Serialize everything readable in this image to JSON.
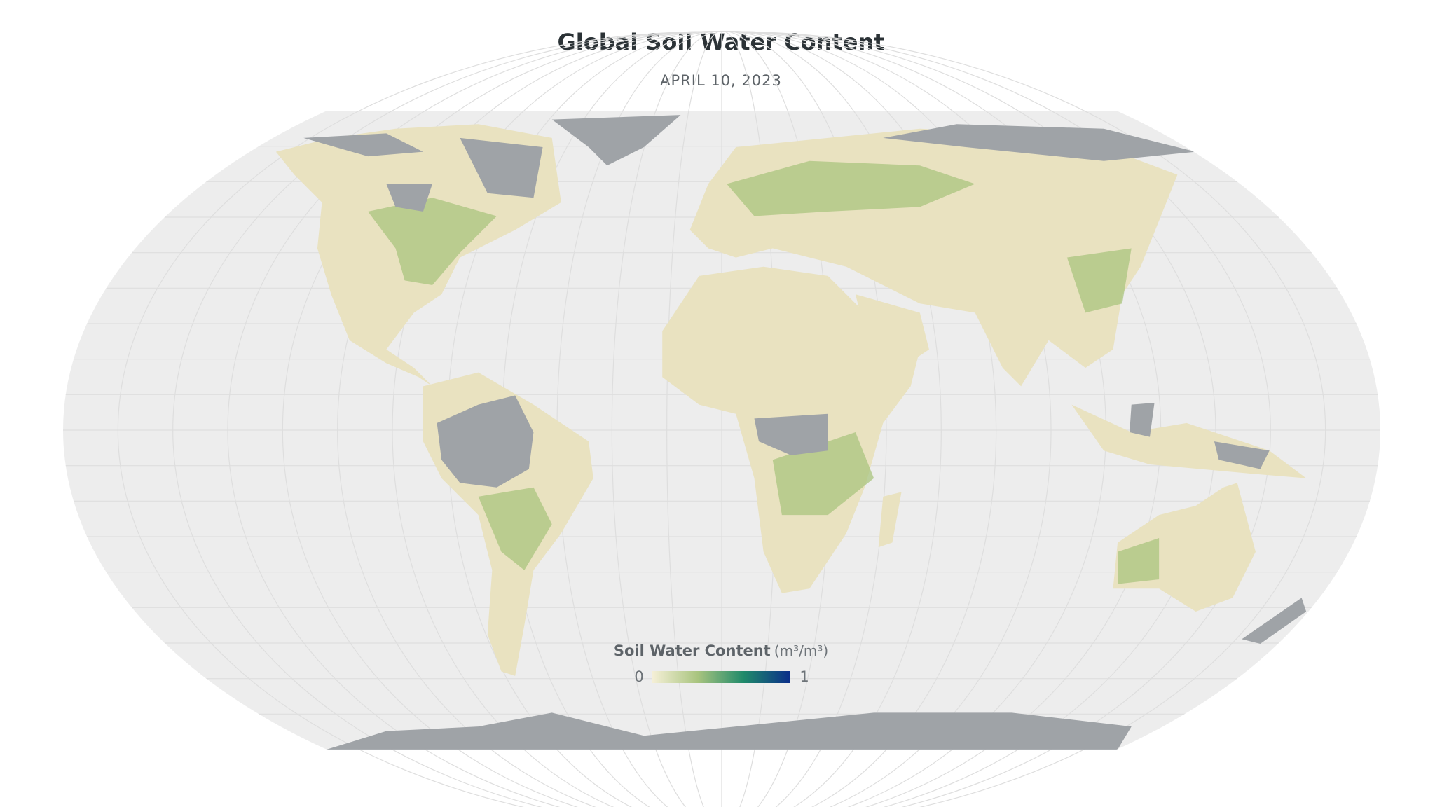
{
  "header": {
    "title": "Global Soil Water Content",
    "subtitle": "APRIL 10, 2023"
  },
  "legend": {
    "title": "Soil Water Content",
    "unit": "(m³/m³)",
    "min": 0,
    "max": 1,
    "colors": [
      "#f6f0d8",
      "#a9c47f",
      "#1f8a6a",
      "#0b2f8a"
    ]
  }
}
